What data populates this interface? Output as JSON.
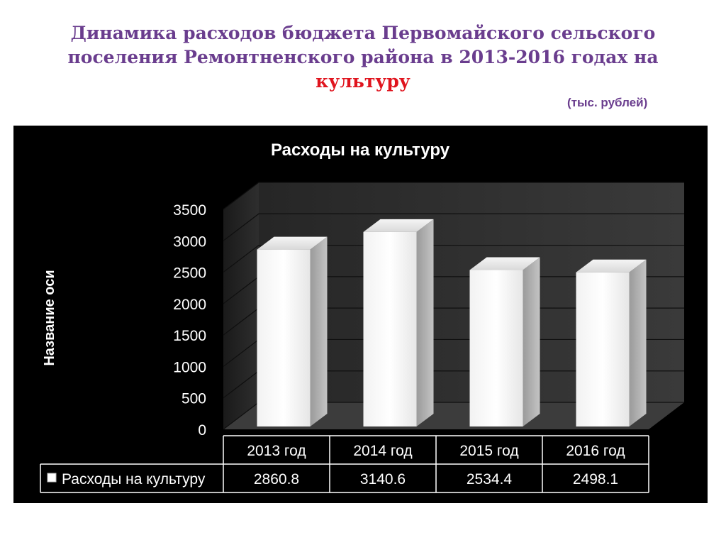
{
  "slide": {
    "title_line1": "Динамика расходов бюджета Первомайского сельского",
    "title_line2": "поселения  Ремонтненского района в 2013-2016 годах на",
    "title_accent": "культуру",
    "unit_note": "(тыс. рублей)"
  },
  "colors": {
    "title": "#6a3d8e",
    "accent": "#e0141e",
    "chart_background": "#000000",
    "bar_face": "#ffffff",
    "text_on_chart": "#ffffff"
  },
  "chart_data": {
    "type": "bar",
    "title": "Расходы на культуру",
    "ylabel": "Название оси",
    "categories": [
      "2013 год",
      "2014 год",
      "2015 год",
      "2016 год"
    ],
    "series": [
      {
        "name": "Расходы на культуру",
        "values": [
          2860.8,
          3140.6,
          2534.4,
          2498.1
        ]
      }
    ],
    "data_table": [
      "2860.8",
      "3140.6",
      "2534.4",
      "2498.1"
    ],
    "ylim": [
      0,
      3500
    ],
    "yticks": [
      0,
      500,
      1000,
      1500,
      2000,
      2500,
      3000,
      3500
    ],
    "grid": true,
    "three_d": true,
    "legend": "data-table"
  }
}
